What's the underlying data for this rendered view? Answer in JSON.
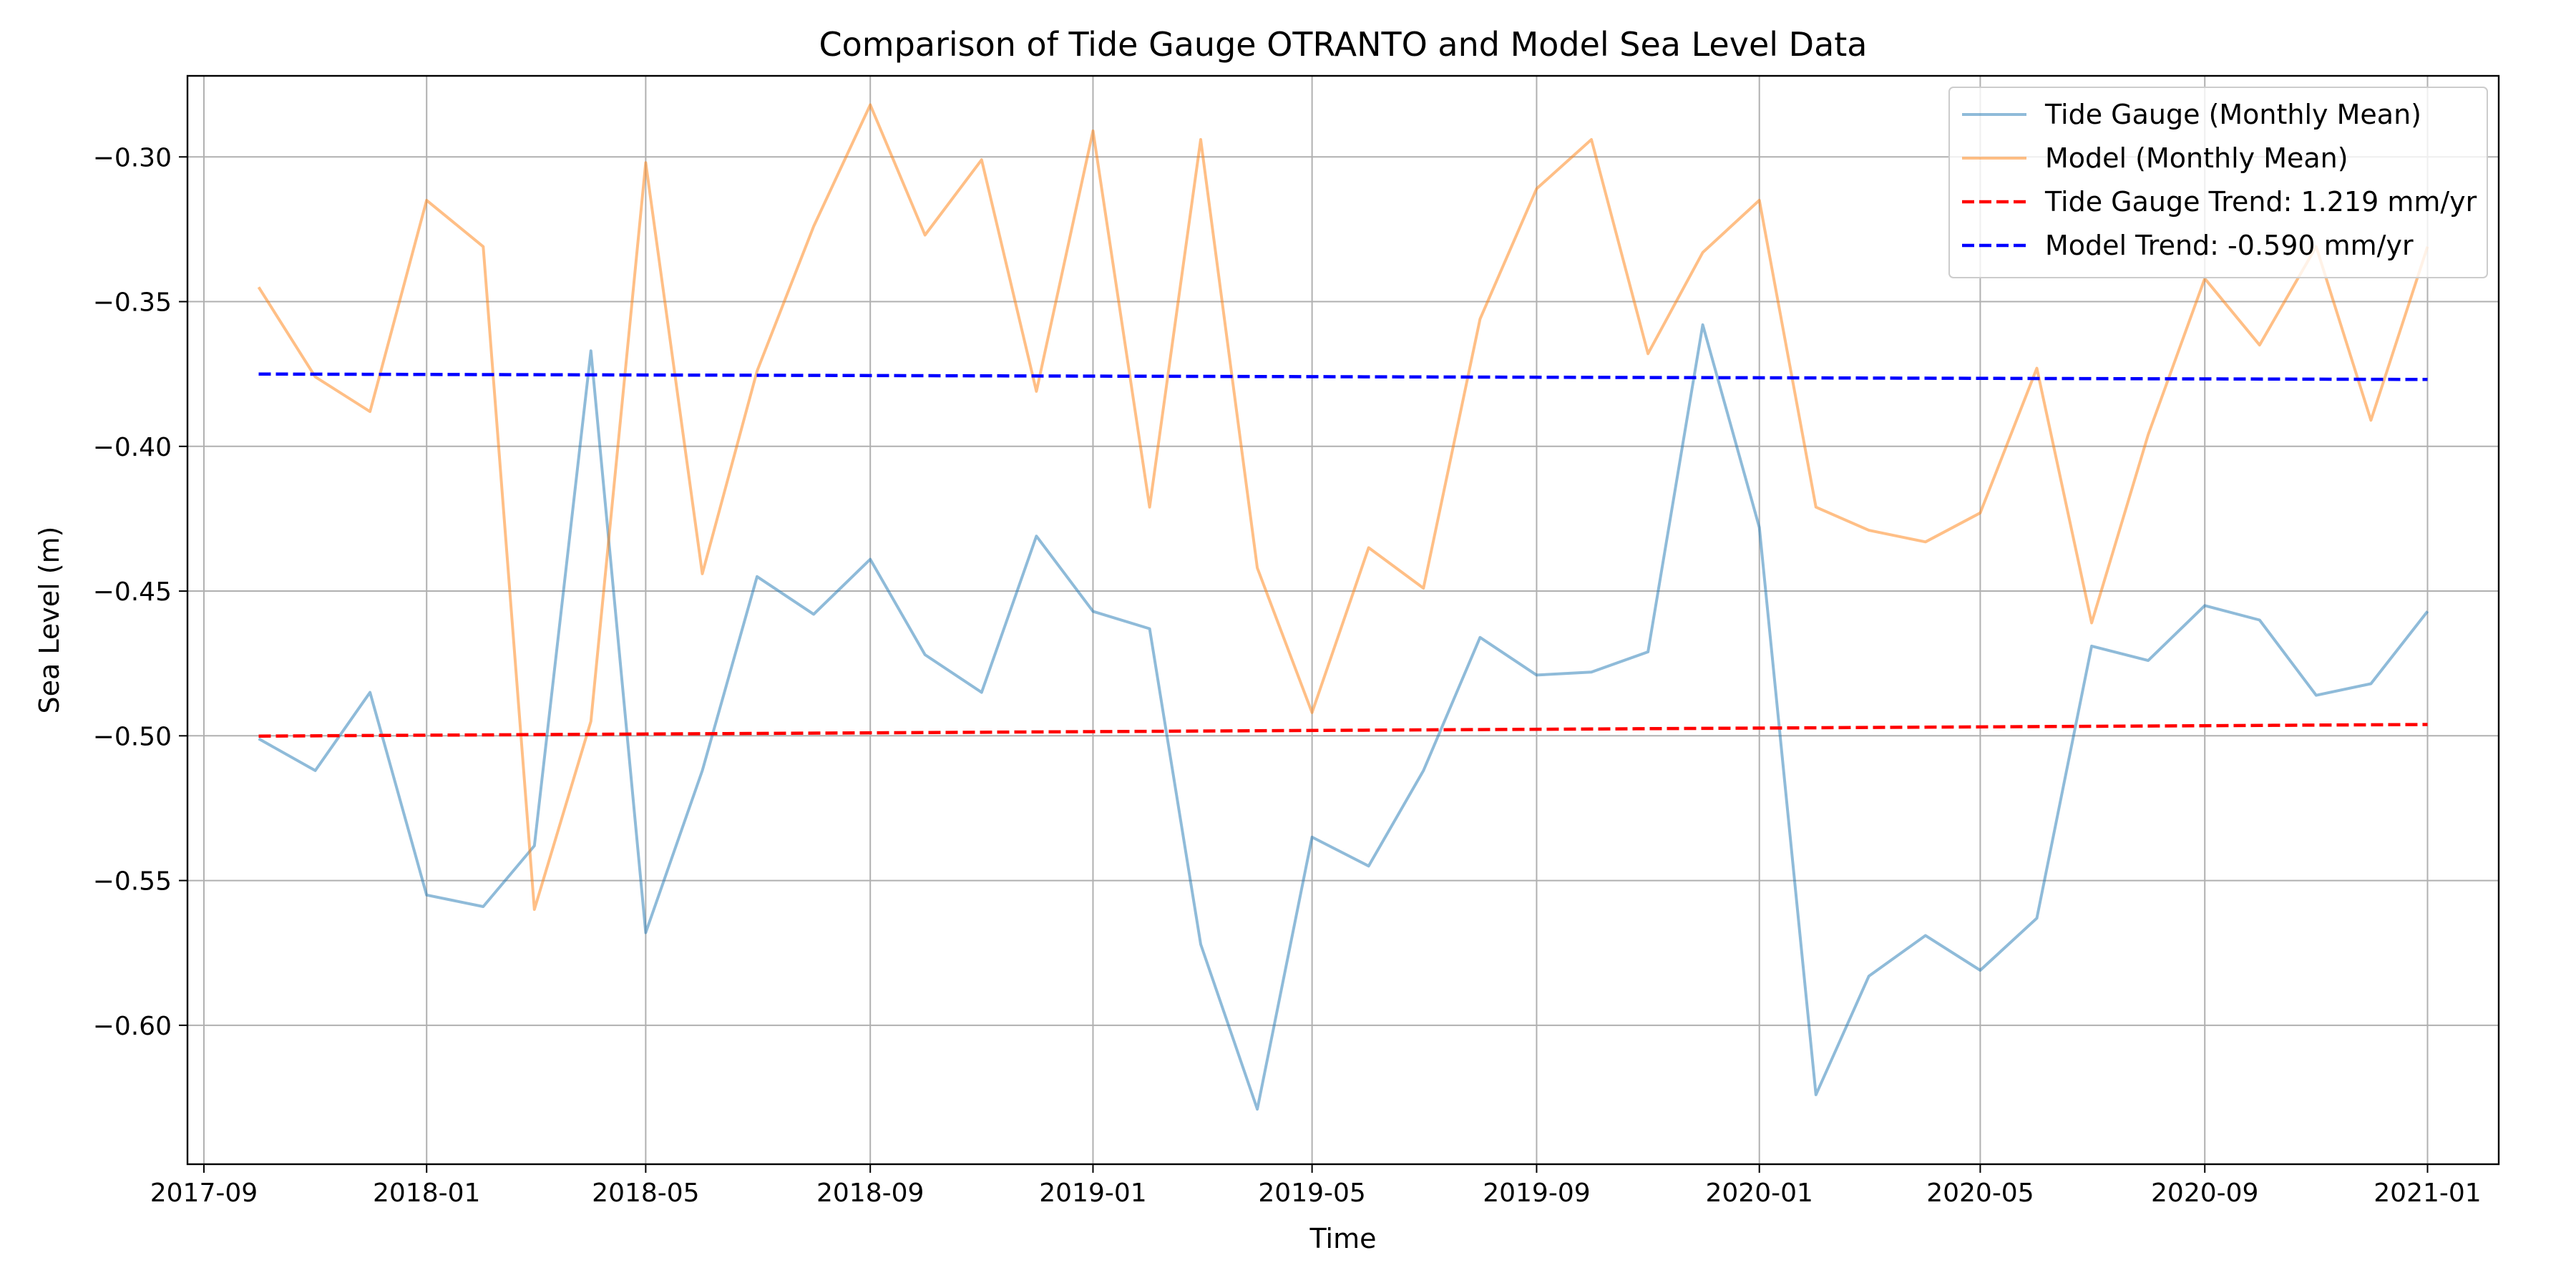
{
  "chart_data": {
    "type": "line",
    "title": "Comparison of Tide Gauge OTRANTO and Model Sea Level Data",
    "xlabel": "Time",
    "ylabel": "Sea Level (m)",
    "xlim": [
      "2017-08-23",
      "2021-02-09"
    ],
    "ylim": [
      -0.648,
      -0.272
    ],
    "grid": true,
    "legend_position": "top-right",
    "x_ticks": [
      "2017-09",
      "2018-01",
      "2018-05",
      "2018-09",
      "2019-01",
      "2019-05",
      "2019-09",
      "2020-01",
      "2020-05",
      "2020-09",
      "2021-01"
    ],
    "y_ticks": [
      -0.6,
      -0.55,
      -0.5,
      -0.45,
      -0.4,
      -0.35,
      -0.3
    ],
    "y_tick_labels": [
      "−0.60",
      "−0.55",
      "−0.50",
      "−0.45",
      "−0.40",
      "−0.35",
      "−0.30"
    ],
    "x": [
      "2017-10-01",
      "2017-11-01",
      "2017-12-01",
      "2018-01-01",
      "2018-02-01",
      "2018-03-01",
      "2018-04-01",
      "2018-05-01",
      "2018-06-01",
      "2018-07-01",
      "2018-08-01",
      "2018-09-01",
      "2018-10-01",
      "2018-11-01",
      "2018-12-01",
      "2019-01-01",
      "2019-02-01",
      "2019-03-01",
      "2019-04-01",
      "2019-05-01",
      "2019-06-01",
      "2019-07-01",
      "2019-08-01",
      "2019-09-01",
      "2019-10-01",
      "2019-11-01",
      "2019-12-01",
      "2020-01-01",
      "2020-02-01",
      "2020-03-01",
      "2020-04-01",
      "2020-05-01",
      "2020-06-01",
      "2020-07-01",
      "2020-08-01",
      "2020-09-01",
      "2020-10-01",
      "2020-11-01",
      "2020-12-01",
      "2021-01-01"
    ],
    "series": [
      {
        "name": "Tide Gauge (Monthly Mean)",
        "color": "#1f77b4",
        "opacity": 0.5,
        "style": "solid",
        "values": [
          -0.501,
          -0.512,
          -0.485,
          -0.555,
          -0.559,
          -0.538,
          -0.367,
          -0.568,
          -0.512,
          -0.445,
          -0.458,
          -0.439,
          -0.472,
          -0.485,
          -0.431,
          -0.457,
          -0.463,
          -0.572,
          -0.629,
          -0.535,
          -0.545,
          -0.512,
          -0.466,
          -0.479,
          -0.478,
          -0.471,
          -0.358,
          -0.428,
          -0.624,
          -0.583,
          -0.569,
          -0.581,
          -0.563,
          -0.469,
          -0.474,
          -0.455,
          -0.46,
          -0.486,
          -0.482,
          -0.457
        ]
      },
      {
        "name": "Model (Monthly Mean)",
        "color": "#ff7f0e",
        "opacity": 0.5,
        "style": "solid",
        "values": [
          -0.345,
          -0.376,
          -0.388,
          -0.315,
          -0.331,
          -0.56,
          -0.495,
          -0.302,
          -0.444,
          -0.374,
          -0.324,
          -0.282,
          -0.327,
          -0.301,
          -0.381,
          -0.291,
          -0.421,
          -0.294,
          -0.442,
          -0.492,
          -0.435,
          -0.449,
          -0.356,
          -0.311,
          -0.294,
          -0.368,
          -0.333,
          -0.315,
          -0.421,
          -0.429,
          -0.433,
          -0.423,
          -0.373,
          -0.461,
          -0.396,
          -0.342,
          -0.365,
          -0.331,
          -0.391,
          -0.331
        ]
      },
      {
        "name": "Tide Gauge Trend: 1.219 mm/yr",
        "color": "#ff0000",
        "opacity": 1,
        "style": "dashed",
        "x": [
          "2017-10-01",
          "2021-01-01"
        ],
        "values": [
          -0.5001,
          -0.4961
        ]
      },
      {
        "name": "Model Trend: -0.590 mm/yr",
        "color": "#0000ff",
        "opacity": 1,
        "style": "dashed",
        "x": [
          "2017-10-01",
          "2021-01-01"
        ],
        "values": [
          -0.375,
          -0.3769
        ]
      }
    ]
  }
}
